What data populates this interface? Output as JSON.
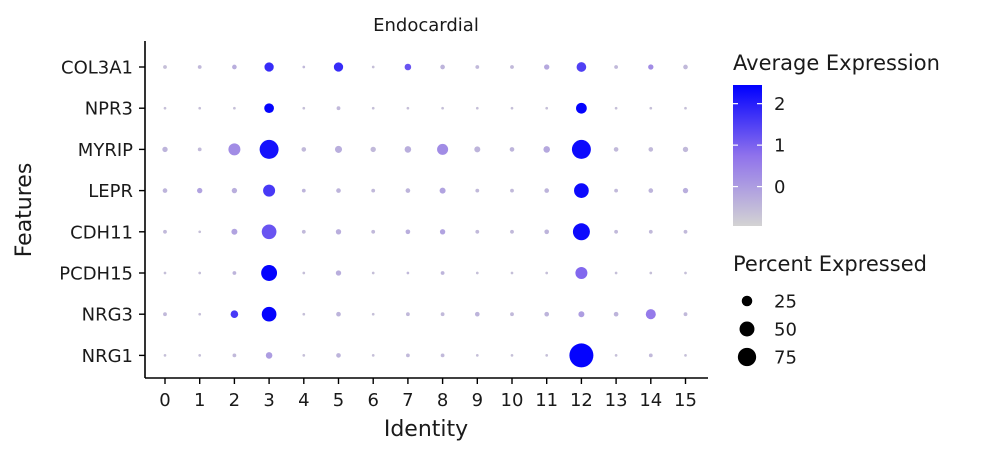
{
  "chart_data": {
    "type": "dotplot",
    "title": "Endocardial",
    "xlabel": "Identity",
    "ylabel": "Features",
    "categories": [
      "0",
      "1",
      "2",
      "3",
      "4",
      "5",
      "6",
      "7",
      "8",
      "9",
      "10",
      "11",
      "12",
      "13",
      "14",
      "15"
    ],
    "features": [
      "COL3A1",
      "NPR3",
      "MYRIP",
      "LEPR",
      "CDH11",
      "PCDH15",
      "NRG3",
      "NRG1"
    ],
    "legend_color": {
      "title": "Average Expression",
      "ticks": [
        0,
        1,
        2
      ],
      "range": [
        -0.95,
        2.45
      ],
      "low_color": "#d3d3d3",
      "high_color": "#0000ff"
    },
    "legend_size": {
      "title": "Percent Expressed",
      "ticks": [
        25,
        50,
        75
      ]
    },
    "series": [
      {
        "feature": "COL3A1",
        "avg_exp": [
          -0.6,
          -0.5,
          -0.3,
          1.8,
          -0.5,
          1.8,
          -0.6,
          1.2,
          -0.4,
          -0.5,
          -0.5,
          -0.2,
          1.5,
          -0.5,
          0.3,
          -0.5
        ],
        "pct_exp": [
          2,
          2,
          3,
          12,
          1,
          12,
          1,
          6,
          3,
          2,
          2,
          4,
          13,
          2,
          4,
          3
        ]
      },
      {
        "feature": "NPR3",
        "avg_exp": [
          -0.6,
          -0.6,
          -0.6,
          2.4,
          -0.6,
          -0.5,
          -0.6,
          -0.6,
          -0.6,
          -0.6,
          -0.6,
          -0.6,
          2.4,
          -0.6,
          -0.6,
          -0.6
        ],
        "pct_exp": [
          1,
          1,
          1,
          13,
          1,
          2,
          1,
          1,
          1,
          1,
          1,
          1,
          16,
          1,
          1,
          1
        ]
      },
      {
        "feature": "MYRIP",
        "avg_exp": [
          -0.4,
          -0.5,
          0.3,
          2.2,
          -0.5,
          -0.3,
          -0.5,
          -0.3,
          0.3,
          -0.4,
          -0.4,
          -0.2,
          2.3,
          -0.5,
          -0.5,
          -0.5
        ],
        "pct_exp": [
          4,
          2,
          20,
          50,
          3,
          7,
          4,
          6,
          17,
          5,
          3,
          6,
          50,
          3,
          3,
          4
        ]
      },
      {
        "feature": "LEPR",
        "avg_exp": [
          -0.4,
          -0.1,
          -0.3,
          1.6,
          -0.4,
          -0.4,
          -0.5,
          -0.4,
          -0.1,
          -0.5,
          -0.5,
          -0.4,
          2.3,
          -0.5,
          -0.4,
          -0.3
        ],
        "pct_exp": [
          3,
          4,
          4,
          20,
          2,
          3,
          2,
          3,
          5,
          2,
          2,
          3,
          30,
          2,
          3,
          4
        ]
      },
      {
        "feature": "CDH11",
        "avg_exp": [
          -0.5,
          -0.6,
          -0.1,
          1.2,
          -0.5,
          -0.3,
          -0.5,
          -0.3,
          -0.1,
          -0.5,
          -0.5,
          -0.4,
          2.3,
          -0.5,
          -0.5,
          -0.5
        ],
        "pct_exp": [
          2,
          1,
          5,
          30,
          2,
          4,
          2,
          3,
          4,
          2,
          2,
          3,
          40,
          2,
          2,
          2
        ]
      },
      {
        "feature": "PCDH15",
        "avg_exp": [
          -0.6,
          -0.6,
          -0.4,
          2.4,
          -0.6,
          -0.3,
          -0.6,
          -0.5,
          -0.4,
          -0.6,
          -0.6,
          -0.6,
          0.9,
          -0.6,
          -0.6,
          -0.6
        ],
        "pct_exp": [
          1,
          1,
          2,
          35,
          1,
          4,
          1,
          1,
          2,
          1,
          1,
          1,
          20,
          1,
          1,
          1
        ]
      },
      {
        "feature": "NRG3",
        "avg_exp": [
          -0.5,
          -0.6,
          1.6,
          2.4,
          -0.6,
          -0.4,
          -0.6,
          -0.5,
          -0.5,
          -0.4,
          -0.5,
          -0.4,
          0.0,
          -0.4,
          0.6,
          -0.5
        ],
        "pct_exp": [
          2,
          1,
          8,
          30,
          1,
          3,
          1,
          2,
          2,
          3,
          2,
          3,
          5,
          3,
          14,
          2
        ]
      },
      {
        "feature": "NRG1",
        "avg_exp": [
          -0.6,
          -0.6,
          -0.5,
          0.0,
          -0.6,
          -0.4,
          -0.6,
          -0.5,
          -0.5,
          -0.6,
          -0.6,
          -0.6,
          2.4,
          -0.6,
          -0.5,
          -0.6
        ],
        "pct_exp": [
          1,
          1,
          2,
          6,
          1,
          3,
          1,
          2,
          2,
          1,
          1,
          1,
          80,
          1,
          2,
          1
        ]
      }
    ]
  }
}
